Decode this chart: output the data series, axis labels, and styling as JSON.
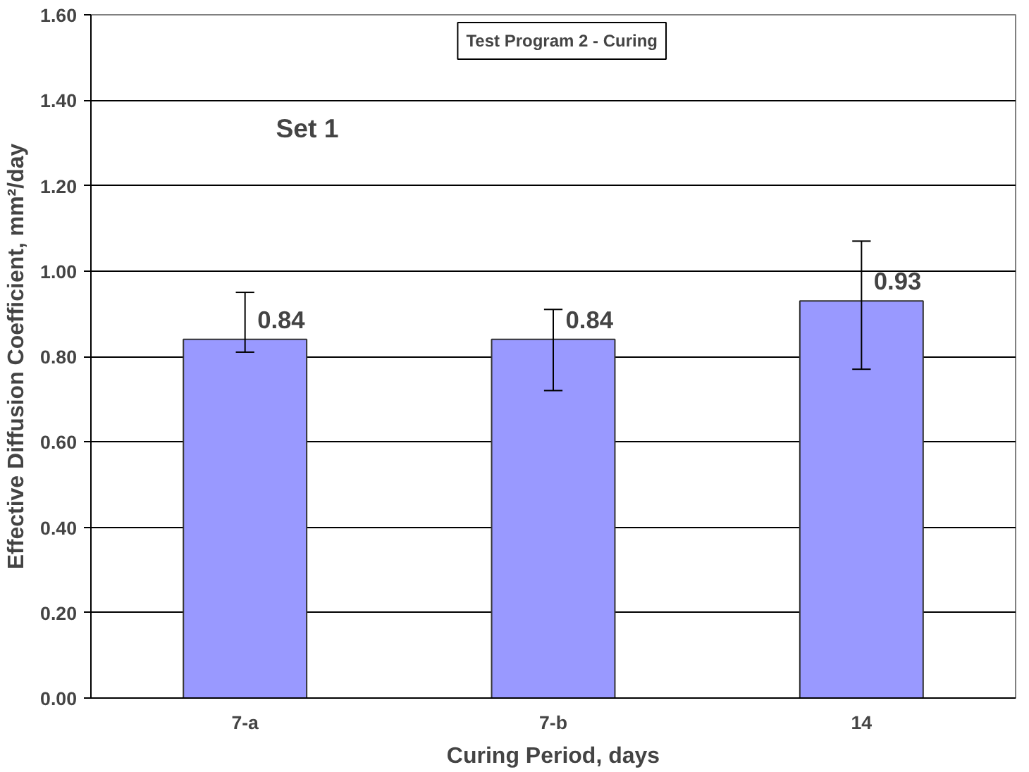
{
  "chart_data": {
    "type": "bar",
    "xlabel": "Curing Period, days",
    "ylabel": "Effective Diffusion Coefficient, mm²/day",
    "categories": [
      "7-a",
      "7-b",
      "14"
    ],
    "values": [
      0.84,
      0.84,
      0.93
    ],
    "errors": [
      [
        0.81,
        0.95
      ],
      [
        0.72,
        0.91
      ],
      [
        0.77,
        1.07
      ]
    ],
    "color": "#9999ff",
    "data_labels": true,
    "ylim": [
      0,
      1.6
    ],
    "yticks": [
      {
        "value": 0,
        "label": "0.00"
      },
      {
        "value": 0.2,
        "label": "0.20"
      },
      {
        "value": 0.4,
        "label": "0.40"
      },
      {
        "value": 0.6,
        "label": "0.60"
      },
      {
        "value": 0.8,
        "label": "0.80"
      },
      {
        "value": 1,
        "label": "1.00"
      },
      {
        "value": 1.2,
        "label": "1.20"
      },
      {
        "value": 1.4,
        "label": "1.40"
      },
      {
        "value": 1.6,
        "label": "1.60"
      }
    ],
    "grid": "y",
    "annotations": [
      "Test Program 2 - Curing",
      "Set 1"
    ]
  }
}
